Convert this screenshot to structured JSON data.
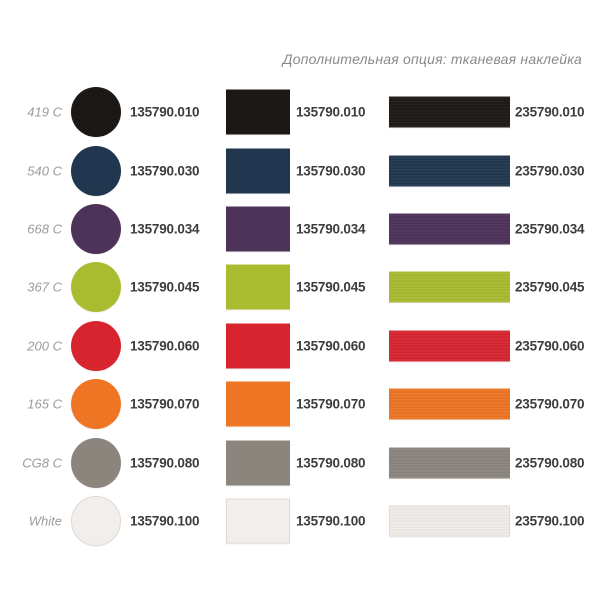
{
  "header": {
    "note": "Дополнительная опция: тканевая наклейка"
  },
  "columns": {
    "swatch_shapes": [
      "circle",
      "fabric-rect",
      "ribbon"
    ]
  },
  "rows": [
    {
      "pantone": "419 C",
      "color": "#1b1815",
      "border": "#1b1815",
      "code_circle": "135790.010",
      "code_rect": "135790.010",
      "code_ribbon": "235790.010"
    },
    {
      "pantone": "540 C",
      "color": "#20374f",
      "border": "#20374f",
      "code_circle": "135790.030",
      "code_rect": "135790.030",
      "code_ribbon": "235790.030"
    },
    {
      "pantone": "668 C",
      "color": "#4d3259",
      "border": "#4d3259",
      "code_circle": "135790.034",
      "code_rect": "135790.034",
      "code_ribbon": "235790.034"
    },
    {
      "pantone": "367 C",
      "color": "#a9bc2f",
      "border": "#a9bc2f",
      "code_circle": "135790.045",
      "code_rect": "135790.045",
      "code_ribbon": "235790.045"
    },
    {
      "pantone": "200 C",
      "color": "#d8242f",
      "border": "#d8242f",
      "code_circle": "135790.060",
      "code_rect": "135790.060",
      "code_ribbon": "235790.060"
    },
    {
      "pantone": "165 C",
      "color": "#ee7523",
      "border": "#ee7523",
      "code_circle": "135790.070",
      "code_rect": "135790.070",
      "code_ribbon": "235790.070"
    },
    {
      "pantone": "CG8 C",
      "color": "#8c857e",
      "border": "#8c857e",
      "code_circle": "135790.080",
      "code_rect": "135790.080",
      "code_ribbon": "235790.080"
    },
    {
      "pantone": "White",
      "color": "#f2eeeb",
      "border": "#dfdad5",
      "code_circle": "135790.100",
      "code_rect": "135790.100",
      "code_ribbon": "235790.100"
    }
  ]
}
